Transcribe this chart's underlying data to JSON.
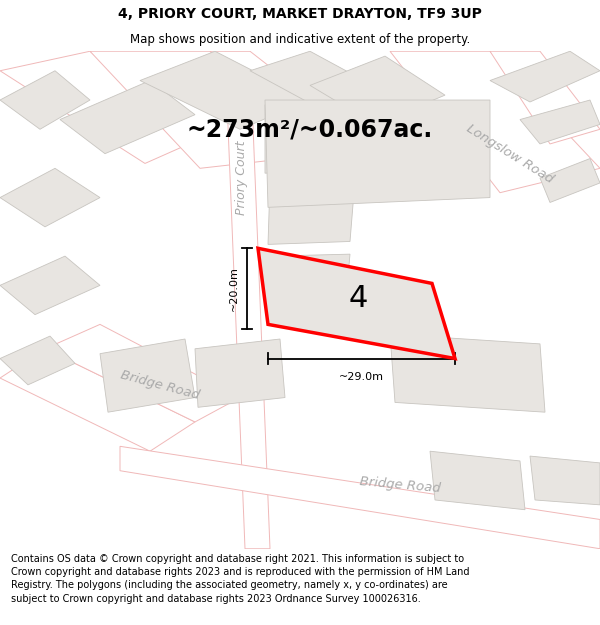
{
  "title": "4, PRIORY COURT, MARKET DRAYTON, TF9 3UP",
  "subtitle": "Map shows position and indicative extent of the property.",
  "area_text": "~273m²/~0.067ac.",
  "plot_number": "4",
  "dim_width": "~29.0m",
  "dim_height": "~20.0m",
  "road_label_longslow": "Longslow Road",
  "road_label_bridge1": "Bridge Road",
  "road_label_bridge2": "Bridge Road",
  "street_label": "Priory Court",
  "footer": "Contains OS data © Crown copyright and database right 2021. This information is subject to Crown copyright and database rights 2023 and is reproduced with the permission of HM Land Registry. The polygons (including the associated geometry, namely x, y co-ordinates) are subject to Crown copyright and database rights 2023 Ordnance Survey 100026316.",
  "bg_color": "#f2f0ee",
  "road_bg": "#ffffff",
  "building_fill": "#e8e5e1",
  "building_edge": "#c8c5c0",
  "pink": "#f0b8b8",
  "red": "#ff0000",
  "dim_color": "#111111",
  "label_color": "#aaaaaa",
  "title_fontsize": 10,
  "subtitle_fontsize": 8.5,
  "area_fontsize": 17,
  "plot_num_fontsize": 22,
  "dim_fontsize": 8,
  "label_fontsize": 9,
  "footer_fontsize": 7.0
}
